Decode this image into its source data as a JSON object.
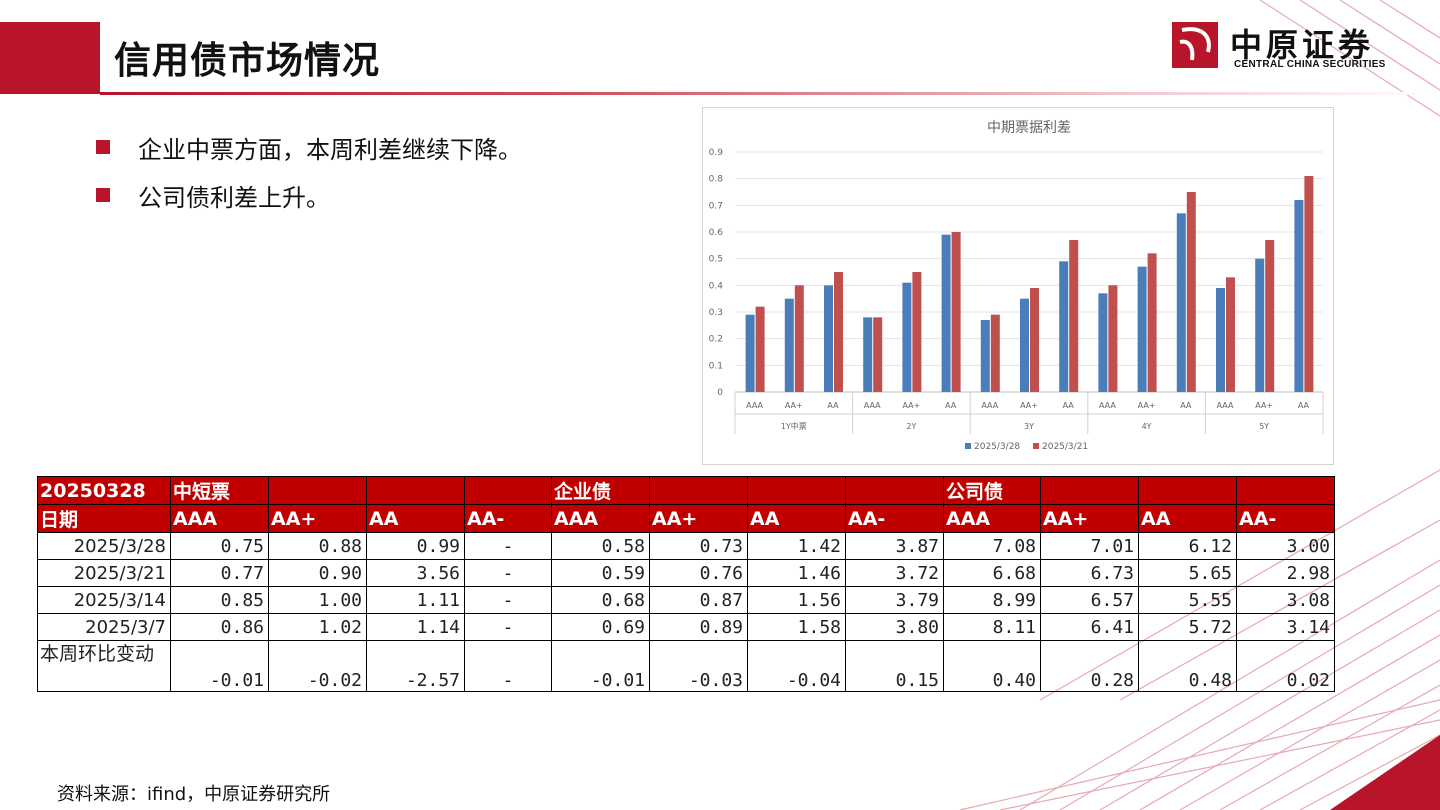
{
  "title": "信用债市场情况",
  "logo": {
    "cn": "中原证券",
    "en": "CENTRAL CHINA SECURITIES"
  },
  "bullets": [
    "企业中票方面，本周利差继续下降。",
    "公司债利差上升。"
  ],
  "chart_data": {
    "type": "bar",
    "title": "中期票据利差",
    "groups": [
      "1Y中票",
      "2Y",
      "3Y",
      "4Y",
      "5Y"
    ],
    "categories": [
      "AAA",
      "AA+",
      "AA",
      "AAA",
      "AA+",
      "AA",
      "AAA",
      "AA+",
      "AA",
      "AAA",
      "AA+",
      "AA",
      "AAA",
      "AA+",
      "AA"
    ],
    "series": [
      {
        "name": "2025/3/28",
        "color": "#4a7ebb",
        "values": [
          0.29,
          0.35,
          0.4,
          0.28,
          0.41,
          0.59,
          0.27,
          0.35,
          0.49,
          0.37,
          0.47,
          0.67,
          0.39,
          0.5,
          0.72
        ]
      },
      {
        "name": "2025/3/21",
        "color": "#c0504d",
        "values": [
          0.32,
          0.4,
          0.45,
          0.28,
          0.45,
          0.6,
          0.29,
          0.39,
          0.57,
          0.4,
          0.52,
          0.75,
          0.43,
          0.57,
          0.81
        ]
      }
    ],
    "ylim": [
      0,
      0.9
    ],
    "yticks": [
      "0",
      "0.1",
      "0.2",
      "0.3",
      "0.4",
      "0.5",
      "0.6",
      "0.7",
      "0.8",
      "0.9"
    ],
    "legend": "bottom"
  },
  "table": {
    "header1": [
      "20250328",
      "中短票",
      "",
      "",
      "",
      "企业债",
      "",
      "",
      "",
      "公司债",
      "",
      "",
      ""
    ],
    "header2": [
      "日期",
      "AAA",
      "AA+",
      "AA",
      "AA-",
      "AAA",
      "AA+",
      "AA",
      "AA-",
      "AAA",
      "AA+",
      "AA",
      "AA-"
    ],
    "rows": [
      [
        "2025/3/28",
        "0.75",
        "0.88",
        "0.99",
        "-",
        "0.58",
        "0.73",
        "1.42",
        "3.87",
        "7.08",
        "7.01",
        "6.12",
        "3.00"
      ],
      [
        "2025/3/21",
        "0.77",
        "0.90",
        "3.56",
        "-",
        "0.59",
        "0.76",
        "1.46",
        "3.72",
        "6.68",
        "6.73",
        "5.65",
        "2.98"
      ],
      [
        "2025/3/14",
        "0.85",
        "1.00",
        "1.11",
        "-",
        "0.68",
        "0.87",
        "1.56",
        "3.79",
        "8.99",
        "6.57",
        "5.55",
        "3.08"
      ],
      [
        "2025/3/7",
        "0.86",
        "1.02",
        "1.14",
        "-",
        "0.69",
        "0.89",
        "1.58",
        "3.80",
        "8.11",
        "6.41",
        "5.72",
        "3.14"
      ],
      [
        " 本周环比变动",
        "-0.01",
        "-0.02",
        "-2.57",
        "-",
        "-0.01",
        "-0.03",
        "-0.04",
        "0.15",
        "0.40",
        "0.28",
        "0.48",
        "0.02"
      ]
    ]
  },
  "source": "资料来源：ifind，中原证券研究所",
  "colors": {
    "brand_red": "#b8142a",
    "table_header_red": "#c00000"
  }
}
